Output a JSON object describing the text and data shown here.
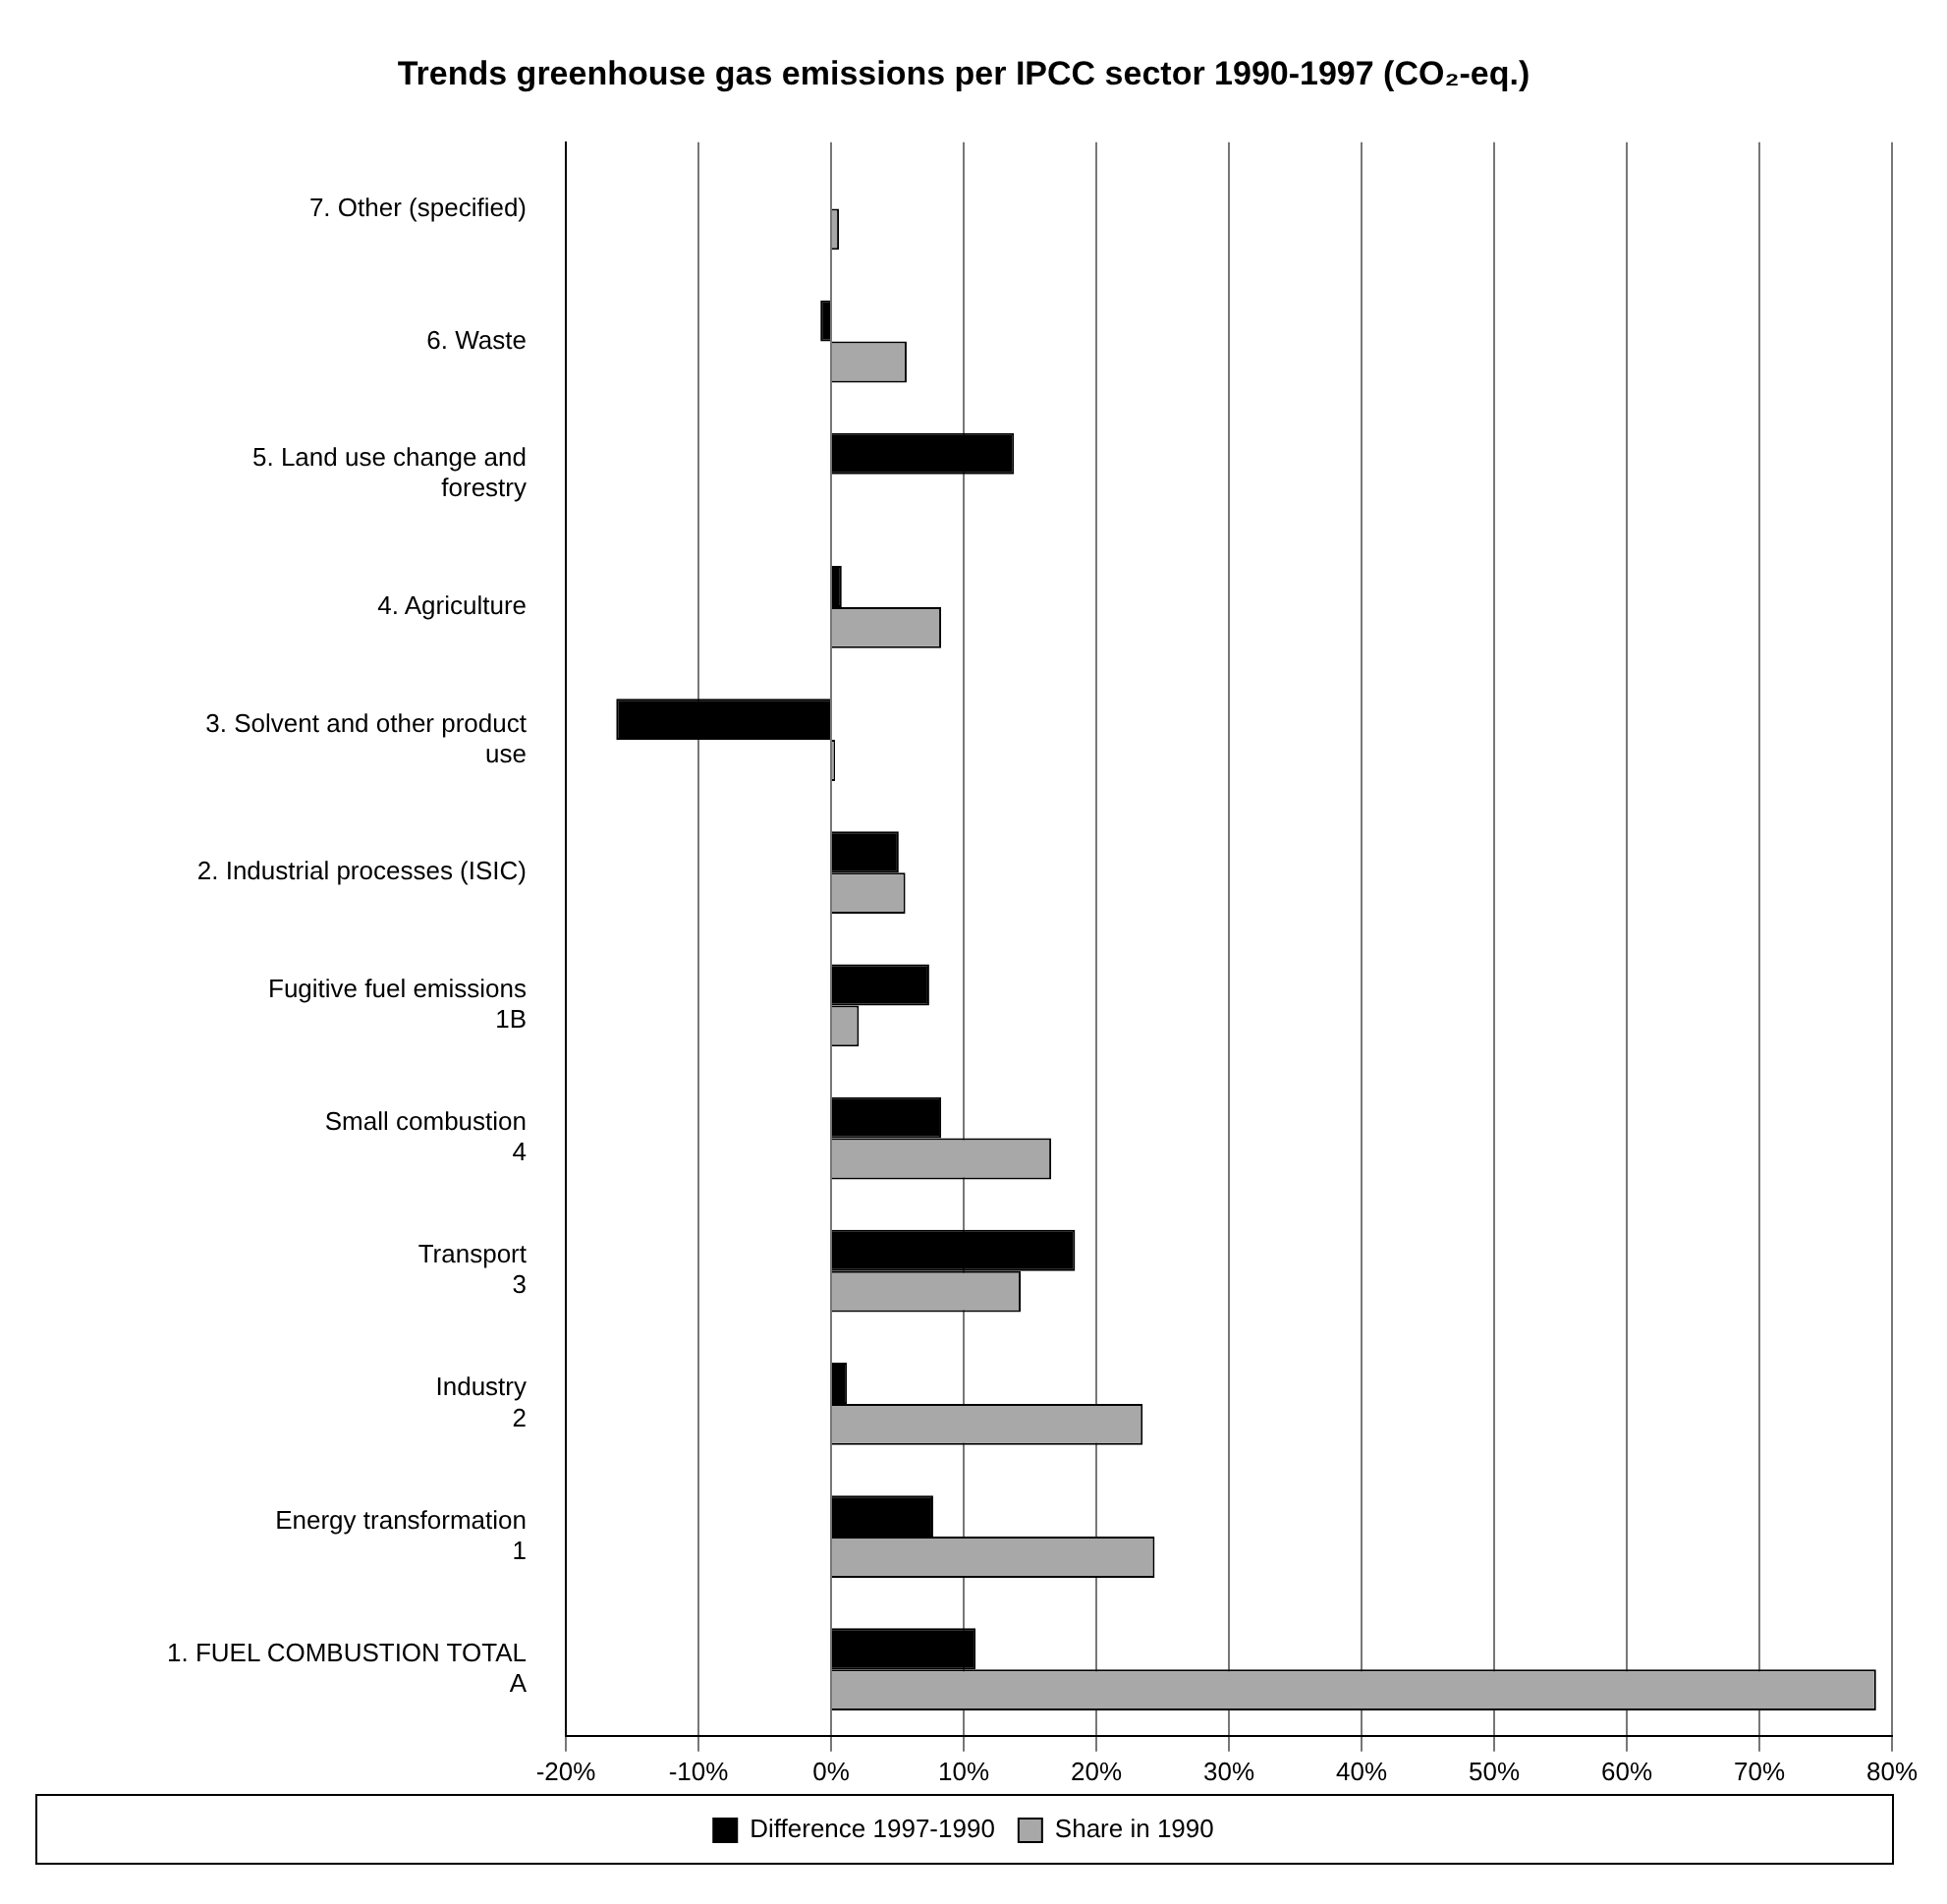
{
  "chart_data": {
    "type": "bar",
    "orientation": "horizontal",
    "title": "Trends greenhouse gas emissions per IPCC sector 1990-1997 (CO₂-eq.)",
    "categories": [
      "7. Other (specified)",
      "6. Waste",
      "5. Land use change and\nforestry",
      "4. Agriculture",
      "3. Solvent and other product\nuse",
      "2. Industrial processes (ISIC)",
      "Fugitive fuel emissions\n1B",
      "Small combustion\n4",
      "Transport\n3",
      "Industry\n2",
      "Energy transformation\n1",
      "1. FUEL COMBUSTION TOTAL\nA"
    ],
    "series": [
      {
        "name": "Difference 1997-1990",
        "color": "#000000",
        "values": [
          null,
          -0.8,
          13.8,
          0.8,
          -16.2,
          5.1,
          7.4,
          8.3,
          18.4,
          1.2,
          7.7,
          10.9
        ]
      },
      {
        "name": "Share in 1990",
        "color": "#a8a8a8",
        "values": [
          0.6,
          5.7,
          null,
          8.3,
          0.3,
          5.6,
          2.1,
          16.6,
          14.3,
          23.5,
          24.4,
          78.8
        ]
      }
    ],
    "xlim": [
      -20,
      80
    ],
    "xticks": [
      {
        "value": -20,
        "label": "-20%"
      },
      {
        "value": -10,
        "label": "-10%"
      },
      {
        "value": 0,
        "label": "0%"
      },
      {
        "value": 10,
        "label": "10%"
      },
      {
        "value": 20,
        "label": "20%"
      },
      {
        "value": 30,
        "label": "30%"
      },
      {
        "value": 40,
        "label": "40%"
      },
      {
        "value": 50,
        "label": "50%"
      },
      {
        "value": 60,
        "label": "60%"
      },
      {
        "value": 70,
        "label": "70%"
      },
      {
        "value": 80,
        "label": "80%"
      }
    ],
    "grid": "x",
    "legend": "bottom"
  }
}
